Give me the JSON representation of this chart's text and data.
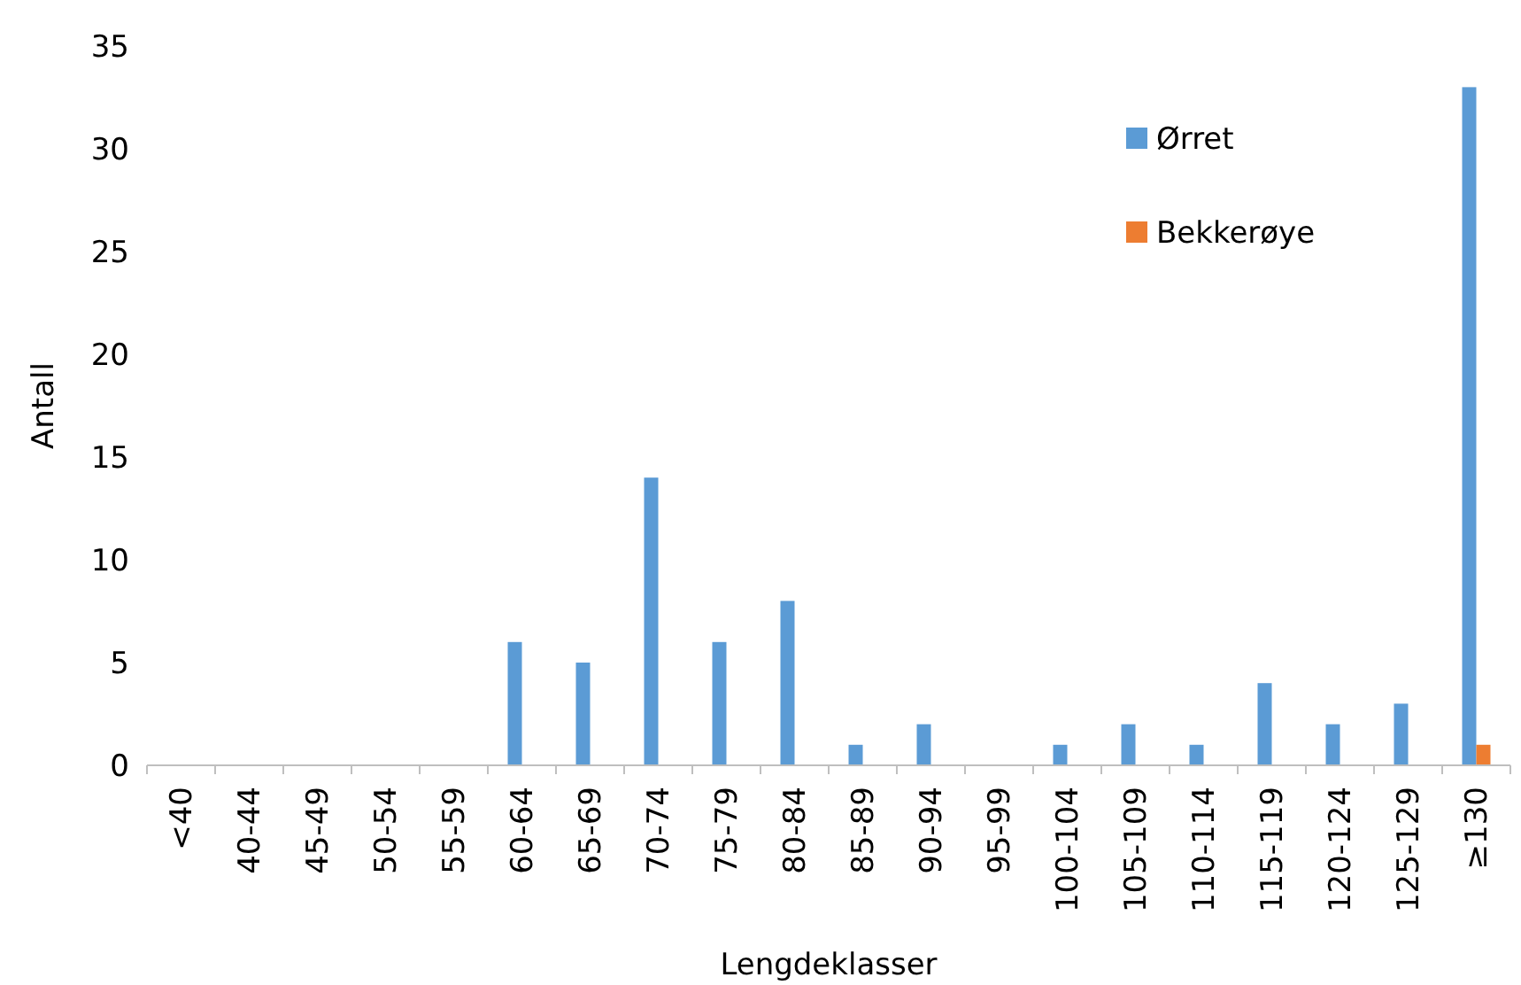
{
  "chart_data": {
    "type": "bar",
    "xlabel": "Lengdeklasser",
    "ylabel": "Antall",
    "categories": [
      "<40",
      "40-44",
      "45-49",
      "50-54",
      "55-59",
      "60-64",
      "65-69",
      "70-74",
      "75-79",
      "80-84",
      "85-89",
      "90-94",
      "95-99",
      "100-104",
      "105-109",
      "110-114",
      "115-119",
      "120-124",
      "125-129",
      "≥130"
    ],
    "series": [
      {
        "name": "Ørret",
        "color": "#5b9bd5",
        "values": [
          0,
          0,
          0,
          0,
          0,
          6,
          5,
          14,
          6,
          8,
          1,
          2,
          0,
          1,
          2,
          1,
          4,
          2,
          3,
          33
        ]
      },
      {
        "name": "Bekkerøye",
        "color": "#ed7d31",
        "values": [
          0,
          0,
          0,
          0,
          0,
          0,
          0,
          0,
          0,
          0,
          0,
          0,
          0,
          0,
          0,
          0,
          0,
          0,
          0,
          1
        ]
      }
    ],
    "ylim": [
      0,
      35
    ],
    "yticks": [
      0,
      5,
      10,
      15,
      20,
      25,
      30,
      35
    ],
    "grid": false,
    "legend": "top right"
  }
}
